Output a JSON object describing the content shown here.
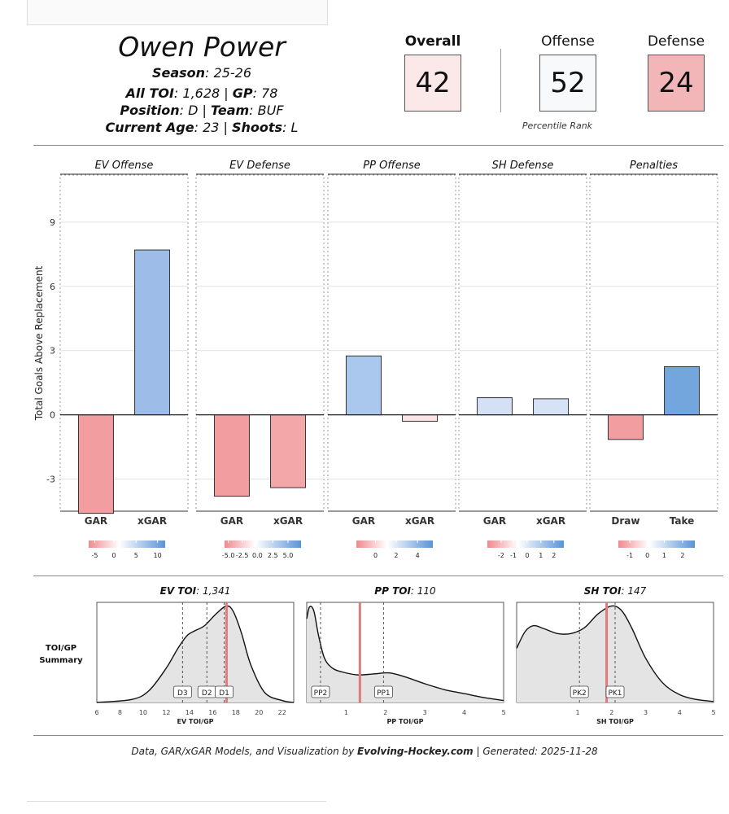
{
  "player": {
    "name": "Owen Power",
    "season_label": "Season",
    "season_value": ": 25-26",
    "toi_label": "All TOI",
    "toi_value": ": 1,628 | ",
    "gp_label": "GP",
    "gp_value": ": 78",
    "position_label": "Position",
    "position_value": ": D | ",
    "team_label": "Team",
    "team_value": ": BUF",
    "age_label": "Current Age",
    "age_value": ": 23 | ",
    "shoots_label": "Shoots",
    "shoots_value": ": L"
  },
  "ranks": {
    "overall_label": "Overall",
    "overall_value": "42",
    "offense_label": "Offense",
    "offense_value": "52",
    "defense_label": "Defense",
    "defense_value": "24",
    "caption": "Percentile Rank",
    "colors": {
      "overall": "#fbe9ea",
      "offense": "#f8f9fb",
      "defense": "#f2b5b8"
    }
  },
  "chart_data": [
    {
      "type": "bar",
      "title": "Total Goals Above Replacement",
      "ylabel": "Total Goals Above Replacement",
      "ylim": [
        -4.5,
        11.2
      ],
      "yticks": [
        -3,
        0,
        3,
        6,
        9
      ],
      "ytick_labels": [
        "-3",
        "0",
        "3",
        "6",
        "9"
      ],
      "panels": [
        {
          "title": "EV Offense",
          "categories": [
            "GAR",
            "xGAR"
          ],
          "values": [
            -4.6,
            7.7
          ],
          "colors": [
            "#f29d9f",
            "#9dbde8"
          ],
          "legend": {
            "ticks": [
              "-5",
              "0",
              "5",
              "10"
            ],
            "tick_pos": [
              0.08,
              0.33,
              0.62,
              0.9
            ]
          }
        },
        {
          "title": "EV Defense",
          "categories": [
            "GAR",
            "xGAR"
          ],
          "values": [
            -3.8,
            -3.4
          ],
          "colors": [
            "#f29d9f",
            "#f4a7a9"
          ],
          "legend": {
            "ticks": [
              "-5.0",
              "-2.5",
              "0.0",
              "2.5",
              "5.0"
            ],
            "tick_pos": [
              0.05,
              0.23,
              0.43,
              0.63,
              0.83
            ]
          }
        },
        {
          "title": "PP Offense",
          "categories": [
            "GAR",
            "xGAR"
          ],
          "values": [
            2.75,
            -0.3
          ],
          "colors": [
            "#aac7ee",
            "#fce3e4"
          ],
          "legend": {
            "ticks": [
              "0",
              "2",
              "4"
            ],
            "tick_pos": [
              0.25,
              0.52,
              0.8
            ]
          }
        },
        {
          "title": "SH Defense",
          "categories": [
            "GAR",
            "xGAR"
          ],
          "values": [
            0.8,
            0.75
          ],
          "colors": [
            "#d3e0f5",
            "#d6e2f5"
          ],
          "legend": {
            "ticks": [
              "-2",
              "-1",
              "0",
              "1",
              "2"
            ],
            "tick_pos": [
              0.18,
              0.34,
              0.52,
              0.7,
              0.87
            ]
          }
        },
        {
          "title": "Penalties",
          "categories": [
            "Draw",
            "Take"
          ],
          "values": [
            -1.15,
            2.25
          ],
          "colors": [
            "#f29d9f",
            "#73a6dc"
          ],
          "legend": {
            "ticks": [
              "-1",
              "0",
              "1",
              "2"
            ],
            "tick_pos": [
              0.15,
              0.38,
              0.6,
              0.84
            ]
          }
        }
      ]
    },
    {
      "type": "area",
      "title": "TOI/GP Summary",
      "row_label_1": "TOI/GP",
      "row_label_2": "Summary",
      "panels": [
        {
          "title_bold": "EV TOI",
          "title_rest": ": 1,341",
          "xlabel": "EV TOI/GP",
          "xlim": [
            6,
            23
          ],
          "xticks": [
            6,
            8,
            10,
            12,
            14,
            16,
            18,
            20,
            22
          ],
          "player_value": 17.2,
          "markers": [
            {
              "label": "D3",
              "x": 13.4
            },
            {
              "label": "D2",
              "x": 15.5
            },
            {
              "label": "D1",
              "x": 17.0
            }
          ],
          "density": [
            [
              6,
              0
            ],
            [
              9,
              0.03
            ],
            [
              10.5,
              0.12
            ],
            [
              12,
              0.35
            ],
            [
              13,
              0.55
            ],
            [
              13.8,
              0.68
            ],
            [
              14.5,
              0.73
            ],
            [
              15.3,
              0.78
            ],
            [
              16.3,
              0.9
            ],
            [
              17.2,
              0.98
            ],
            [
              17.8,
              0.92
            ],
            [
              18.5,
              0.7
            ],
            [
              19.3,
              0.38
            ],
            [
              20.5,
              0.1
            ],
            [
              22,
              0.02
            ],
            [
              23,
              0
            ]
          ]
        },
        {
          "title_bold": "PP TOI",
          "title_rest": ": 110",
          "xlabel": "PP TOI/GP",
          "xlim": [
            0,
            5
          ],
          "xticks": [
            1,
            2,
            3,
            4,
            5
          ],
          "player_value": 1.35,
          "markers": [
            {
              "label": "PP2",
              "x": 0.35
            },
            {
              "label": "PP1",
              "x": 1.95
            }
          ],
          "density": [
            [
              0,
              0.85
            ],
            [
              0.07,
              0.97
            ],
            [
              0.18,
              0.93
            ],
            [
              0.3,
              0.68
            ],
            [
              0.45,
              0.45
            ],
            [
              0.65,
              0.35
            ],
            [
              0.9,
              0.31
            ],
            [
              1.3,
              0.28
            ],
            [
              1.7,
              0.29
            ],
            [
              2.1,
              0.3
            ],
            [
              2.5,
              0.26
            ],
            [
              3.0,
              0.19
            ],
            [
              3.5,
              0.13
            ],
            [
              4.0,
              0.09
            ],
            [
              4.5,
              0.05
            ],
            [
              5,
              0.02
            ]
          ]
        },
        {
          "title_bold": "SH TOI",
          "title_rest": ": 147",
          "xlabel": "SH TOI/GP",
          "xlim": [
            -0.8,
            5
          ],
          "xticks": [
            1,
            2,
            3,
            4,
            5
          ],
          "player_value": 1.85,
          "markers": [
            {
              "label": "PK2",
              "x": 1.05
            },
            {
              "label": "PK1",
              "x": 2.1
            }
          ],
          "density": [
            [
              -0.8,
              0.55
            ],
            [
              -0.55,
              0.72
            ],
            [
              -0.3,
              0.78
            ],
            [
              0,
              0.75
            ],
            [
              0.4,
              0.7
            ],
            [
              0.8,
              0.7
            ],
            [
              1.2,
              0.76
            ],
            [
              1.6,
              0.9
            ],
            [
              2.0,
              0.98
            ],
            [
              2.3,
              0.93
            ],
            [
              2.6,
              0.75
            ],
            [
              3.0,
              0.45
            ],
            [
              3.5,
              0.2
            ],
            [
              4.0,
              0.08
            ],
            [
              4.5,
              0.03
            ],
            [
              5,
              0.01
            ]
          ]
        }
      ]
    }
  ],
  "footer": {
    "prefix": "Data, GAR/xGAR Models, and Visualization by ",
    "brand": "Evolving-Hockey.com",
    "suffix": " | Generated: 2025-11-28"
  }
}
